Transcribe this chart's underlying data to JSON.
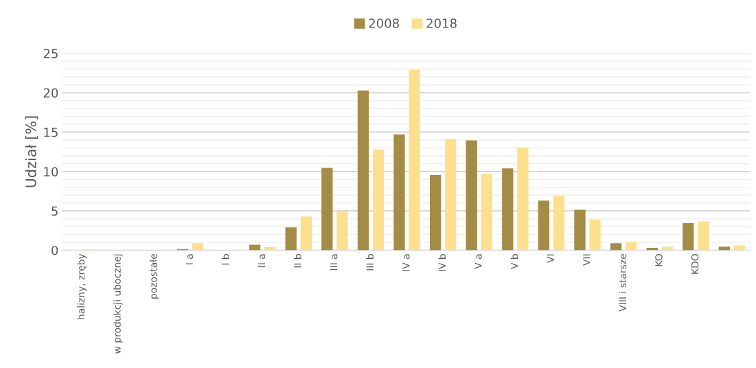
{
  "chart_data": {
    "type": "bar",
    "ylabel": "Udział [%]",
    "categories": [
      "halizny, zręby",
      "w produkcji ubocznej",
      "pozostałe",
      "I a",
      "I b",
      "II a",
      "II b",
      "III a",
      "III b",
      "IV a",
      "IV b",
      "V a",
      "V b",
      "VI",
      "VII",
      "VIII i starsze",
      "KO",
      "KDO",
      null
    ],
    "series": [
      {
        "name": "2008",
        "color": "#a38c45",
        "values": [
          0,
          0,
          0,
          0.15,
          0,
          0.7,
          2.9,
          10.45,
          20.3,
          14.7,
          9.55,
          13.95,
          10.4,
          6.3,
          5.15,
          0.9,
          0.3,
          3.45,
          0.45
        ]
      },
      {
        "name": "2018",
        "color": "#fde08e",
        "values": [
          0.1,
          0,
          0,
          0.9,
          0,
          0.4,
          4.3,
          5.0,
          12.8,
          22.9,
          14.15,
          9.7,
          13.0,
          6.9,
          3.9,
          1.05,
          0.45,
          3.65,
          0.6
        ]
      }
    ],
    "ylim": [
      0,
      25
    ],
    "yticks": [
      0,
      {
        "value": 1,
        "label": null
      },
      {
        "value": 2,
        "label": null
      },
      {
        "value": 3,
        "label": null
      },
      {
        "value": 4,
        "label": null
      },
      5,
      {
        "value": 6,
        "label": null
      },
      {
        "value": 7,
        "label": null
      },
      {
        "value": 8,
        "label": null
      },
      {
        "value": 9,
        "label": null
      },
      10,
      {
        "value": 11,
        "label": null
      },
      {
        "value": 12,
        "label": null
      },
      {
        "value": 13,
        "label": null
      },
      {
        "value": 14,
        "label": null
      },
      15,
      {
        "value": 16,
        "label": null
      },
      {
        "value": 17,
        "label": null
      },
      {
        "value": 18,
        "label": null
      },
      {
        "value": 19,
        "label": null
      },
      20,
      {
        "value": 21,
        "label": null
      },
      {
        "value": 22,
        "label": null
      },
      {
        "value": 23,
        "label": null
      },
      {
        "value": 24,
        "label": null
      },
      25
    ],
    "grid": "y",
    "legend": "top"
  }
}
